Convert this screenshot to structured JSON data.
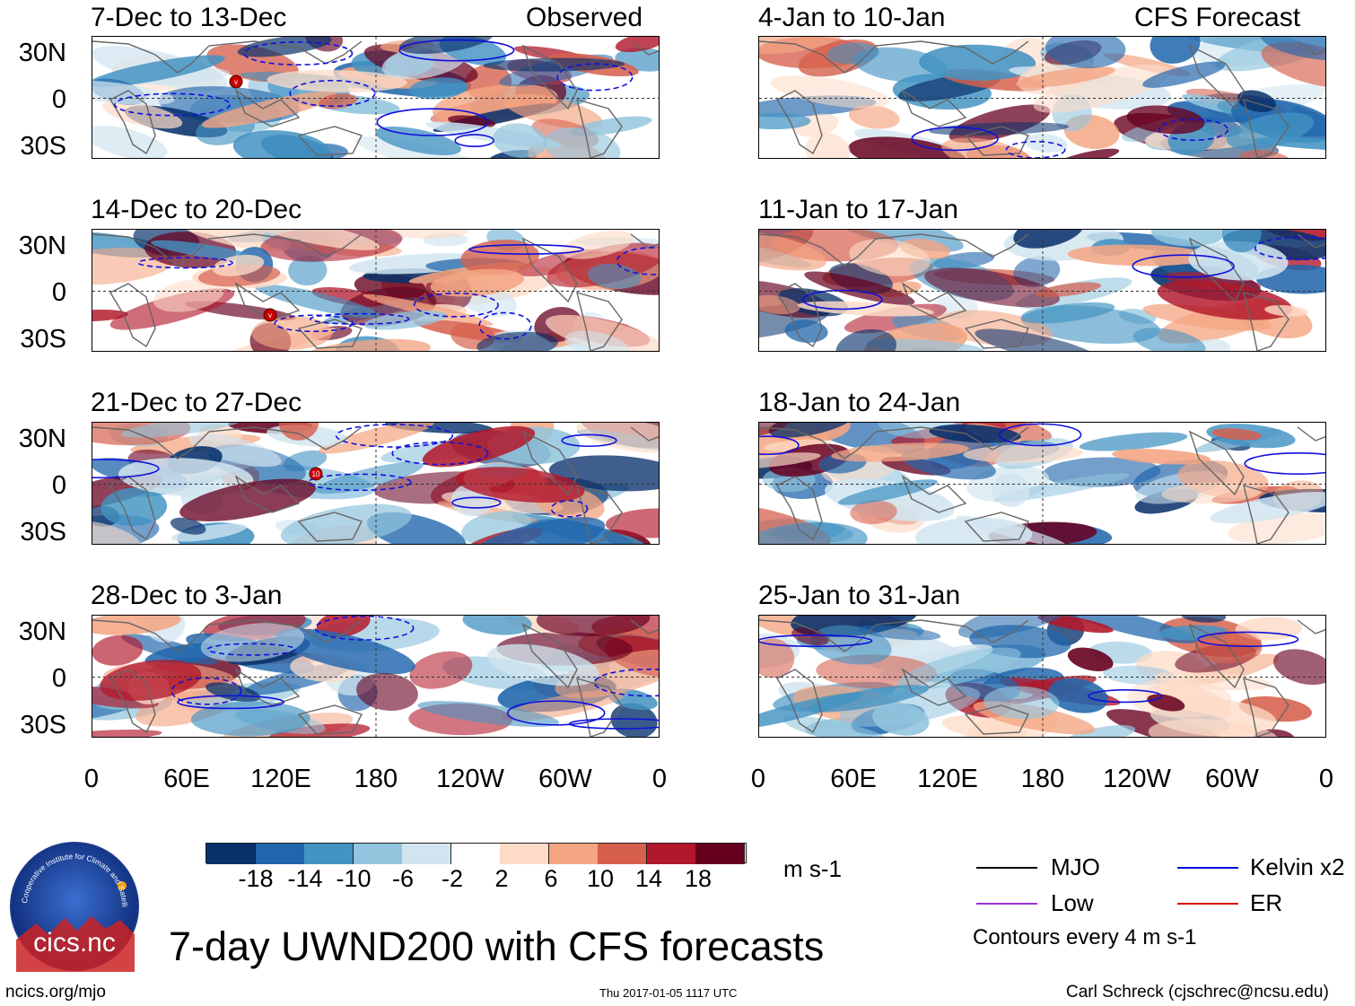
{
  "left_header_right": "Observed",
  "right_header_right": "CFS Forecast",
  "panels_left": [
    {
      "title": "7-Dec to 13-Dec"
    },
    {
      "title": "14-Dec to 20-Dec"
    },
    {
      "title": "21-Dec to 27-Dec"
    },
    {
      "title": "28-Dec to 3-Jan"
    }
  ],
  "panels_right": [
    {
      "title": "4-Jan to 10-Jan"
    },
    {
      "title": "11-Jan to 17-Jan"
    },
    {
      "title": "18-Jan to 24-Jan"
    },
    {
      "title": "25-Jan to 31-Jan"
    }
  ],
  "lat_labels": [
    "30N",
    "0",
    "30S"
  ],
  "lon_labels": [
    "0",
    "60E",
    "120E",
    "180",
    "120W",
    "60W",
    "0"
  ],
  "colorbar": {
    "unit": "m s-1",
    "ticks": [
      "-18",
      "-14",
      "-10",
      "-6",
      "-2",
      "2",
      "6",
      "10",
      "14",
      "18"
    ],
    "colors": [
      "#08306b",
      "#2166ac",
      "#4393c3",
      "#92c5de",
      "#d1e5f0",
      "#ffffff",
      "#fddbc7",
      "#f4a582",
      "#d6604d",
      "#b2182b",
      "#67001f"
    ]
  },
  "legend": {
    "items": [
      {
        "label": "MJO",
        "color": "#000000"
      },
      {
        "label": "Kelvin x2",
        "color": "#0000dd"
      },
      {
        "label": "Low",
        "color": "#9b30d9"
      },
      {
        "label": "ER",
        "color": "#dd0000"
      }
    ],
    "note": "Contours every 4 m s-1"
  },
  "logo_text": "cics.nc",
  "logo_ring_text": "Cooperative Institute for Climate and Satellites",
  "main_title": "7-day UWND200 with CFS forecasts",
  "footer": {
    "left": "ncics.org/mjo",
    "center": "Thu 2017-01-05 1117 UTC",
    "right": "Carl Schreck (cjschrec@ncsu.edu)"
  },
  "storm_markers": [
    {
      "panel": 0,
      "label": "v"
    },
    {
      "panel": 1,
      "label": "v"
    },
    {
      "panel": 2,
      "label": "10"
    }
  ]
}
